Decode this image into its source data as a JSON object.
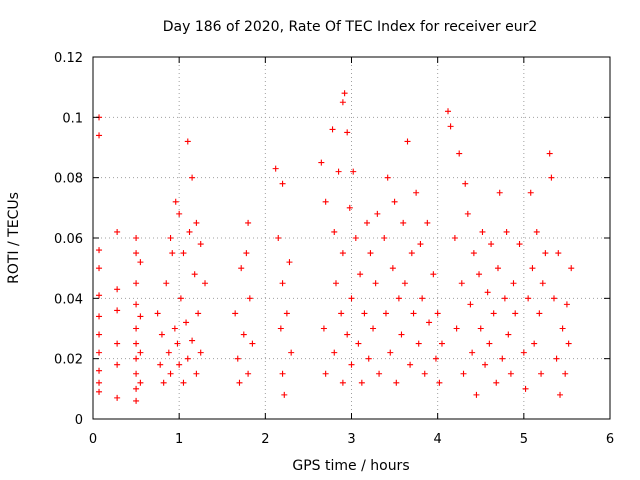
{
  "chart_data": {
    "type": "scatter",
    "title": "Day 186 of 2020, Rate Of TEC Index for receiver eur2",
    "xlabel": "GPS time / hours",
    "ylabel": "ROTI / TECUs",
    "xlim": [
      0,
      6
    ],
    "ylim": [
      0,
      0.12
    ],
    "xticks": [
      0,
      1,
      2,
      3,
      4,
      5,
      6
    ],
    "xtick_labels": [
      "0",
      "1",
      "2",
      "3",
      "4",
      "5",
      "6"
    ],
    "yticks": [
      0,
      0.02,
      0.04,
      0.06,
      0.08,
      0.1,
      0.12
    ],
    "ytick_labels": [
      "0",
      "0.02",
      "0.04",
      "0.06",
      "0.08",
      "0.1",
      "0.12"
    ],
    "grid": true,
    "marker": "+",
    "color": "#ff0000",
    "series": [
      {
        "name": "eur2",
        "points": [
          [
            0.07,
            0.1
          ],
          [
            0.07,
            0.094
          ],
          [
            0.07,
            0.056
          ],
          [
            0.07,
            0.05
          ],
          [
            0.07,
            0.041
          ],
          [
            0.07,
            0.034
          ],
          [
            0.07,
            0.028
          ],
          [
            0.07,
            0.022
          ],
          [
            0.07,
            0.016
          ],
          [
            0.07,
            0.012
          ],
          [
            0.07,
            0.009
          ],
          [
            0.28,
            0.062
          ],
          [
            0.28,
            0.043
          ],
          [
            0.28,
            0.036
          ],
          [
            0.28,
            0.025
          ],
          [
            0.28,
            0.018
          ],
          [
            0.28,
            0.007
          ],
          [
            0.5,
            0.06
          ],
          [
            0.5,
            0.055
          ],
          [
            0.5,
            0.045
          ],
          [
            0.5,
            0.038
          ],
          [
            0.5,
            0.03
          ],
          [
            0.5,
            0.025
          ],
          [
            0.5,
            0.02
          ],
          [
            0.5,
            0.015
          ],
          [
            0.5,
            0.01
          ],
          [
            0.5,
            0.006
          ],
          [
            0.55,
            0.052
          ],
          [
            0.55,
            0.034
          ],
          [
            0.55,
            0.022
          ],
          [
            0.55,
            0.012
          ],
          [
            0.75,
            0.035
          ],
          [
            0.78,
            0.018
          ],
          [
            0.8,
            0.028
          ],
          [
            0.82,
            0.012
          ],
          [
            0.85,
            0.045
          ],
          [
            0.88,
            0.022
          ],
          [
            0.9,
            0.015
          ],
          [
            0.9,
            0.06
          ],
          [
            0.92,
            0.055
          ],
          [
            0.95,
            0.03
          ],
          [
            0.96,
            0.072
          ],
          [
            0.98,
            0.025
          ],
          [
            1.0,
            0.068
          ],
          [
            1.0,
            0.018
          ],
          [
            1.02,
            0.04
          ],
          [
            1.05,
            0.012
          ],
          [
            1.05,
            0.055
          ],
          [
            1.08,
            0.032
          ],
          [
            1.1,
            0.092
          ],
          [
            1.1,
            0.02
          ],
          [
            1.12,
            0.062
          ],
          [
            1.15,
            0.08
          ],
          [
            1.15,
            0.026
          ],
          [
            1.18,
            0.048
          ],
          [
            1.2,
            0.065
          ],
          [
            1.2,
            0.015
          ],
          [
            1.22,
            0.035
          ],
          [
            1.25,
            0.058
          ],
          [
            1.25,
            0.022
          ],
          [
            1.3,
            0.045
          ],
          [
            1.65,
            0.035
          ],
          [
            1.68,
            0.02
          ],
          [
            1.7,
            0.012
          ],
          [
            1.72,
            0.05
          ],
          [
            1.75,
            0.028
          ],
          [
            1.78,
            0.055
          ],
          [
            1.8,
            0.065
          ],
          [
            1.8,
            0.015
          ],
          [
            1.82,
            0.04
          ],
          [
            1.85,
            0.025
          ],
          [
            2.12,
            0.083
          ],
          [
            2.15,
            0.06
          ],
          [
            2.18,
            0.03
          ],
          [
            2.2,
            0.078
          ],
          [
            2.2,
            0.045
          ],
          [
            2.2,
            0.015
          ],
          [
            2.22,
            0.008
          ],
          [
            2.25,
            0.035
          ],
          [
            2.28,
            0.052
          ],
          [
            2.3,
            0.022
          ],
          [
            2.65,
            0.085
          ],
          [
            2.68,
            0.03
          ],
          [
            2.7,
            0.072
          ],
          [
            2.7,
            0.015
          ],
          [
            2.78,
            0.096
          ],
          [
            2.8,
            0.062
          ],
          [
            2.8,
            0.022
          ],
          [
            2.82,
            0.045
          ],
          [
            2.85,
            0.082
          ],
          [
            2.88,
            0.035
          ],
          [
            2.9,
            0.105
          ],
          [
            2.9,
            0.055
          ],
          [
            2.9,
            0.012
          ],
          [
            2.92,
            0.108
          ],
          [
            2.95,
            0.095
          ],
          [
            2.95,
            0.028
          ],
          [
            2.98,
            0.07
          ],
          [
            3.0,
            0.04
          ],
          [
            3.0,
            0.018
          ],
          [
            3.02,
            0.082
          ],
          [
            3.05,
            0.06
          ],
          [
            3.08,
            0.025
          ],
          [
            3.1,
            0.048
          ],
          [
            3.12,
            0.012
          ],
          [
            3.15,
            0.035
          ],
          [
            3.18,
            0.065
          ],
          [
            3.2,
            0.02
          ],
          [
            3.22,
            0.055
          ],
          [
            3.25,
            0.03
          ],
          [
            3.28,
            0.045
          ],
          [
            3.3,
            0.068
          ],
          [
            3.32,
            0.015
          ],
          [
            3.38,
            0.06
          ],
          [
            3.4,
            0.035
          ],
          [
            3.42,
            0.08
          ],
          [
            3.45,
            0.022
          ],
          [
            3.48,
            0.05
          ],
          [
            3.5,
            0.072
          ],
          [
            3.52,
            0.012
          ],
          [
            3.55,
            0.04
          ],
          [
            3.58,
            0.028
          ],
          [
            3.6,
            0.065
          ],
          [
            3.62,
            0.045
          ],
          [
            3.65,
            0.092
          ],
          [
            3.68,
            0.018
          ],
          [
            3.7,
            0.055
          ],
          [
            3.72,
            0.035
          ],
          [
            3.75,
            0.075
          ],
          [
            3.78,
            0.025
          ],
          [
            3.8,
            0.058
          ],
          [
            3.82,
            0.04
          ],
          [
            3.85,
            0.015
          ],
          [
            3.88,
            0.065
          ],
          [
            3.9,
            0.032
          ],
          [
            3.95,
            0.048
          ],
          [
            3.98,
            0.02
          ],
          [
            4.0,
            0.035
          ],
          [
            4.02,
            0.012
          ],
          [
            4.05,
            0.025
          ],
          [
            4.12,
            0.102
          ],
          [
            4.15,
            0.097
          ],
          [
            4.2,
            0.06
          ],
          [
            4.22,
            0.03
          ],
          [
            4.25,
            0.088
          ],
          [
            4.28,
            0.045
          ],
          [
            4.3,
            0.015
          ],
          [
            4.32,
            0.078
          ],
          [
            4.35,
            0.068
          ],
          [
            4.38,
            0.038
          ],
          [
            4.4,
            0.022
          ],
          [
            4.42,
            0.055
          ],
          [
            4.45,
            0.008
          ],
          [
            4.48,
            0.048
          ],
          [
            4.5,
            0.03
          ],
          [
            4.52,
            0.062
          ],
          [
            4.55,
            0.018
          ],
          [
            4.58,
            0.042
          ],
          [
            4.6,
            0.025
          ],
          [
            4.62,
            0.058
          ],
          [
            4.65,
            0.035
          ],
          [
            4.68,
            0.012
          ],
          [
            4.7,
            0.05
          ],
          [
            4.72,
            0.075
          ],
          [
            4.75,
            0.02
          ],
          [
            4.78,
            0.04
          ],
          [
            4.8,
            0.062
          ],
          [
            4.82,
            0.028
          ],
          [
            4.85,
            0.015
          ],
          [
            4.88,
            0.045
          ],
          [
            4.9,
            0.035
          ],
          [
            4.95,
            0.058
          ],
          [
            5.0,
            0.022
          ],
          [
            5.02,
            0.01
          ],
          [
            5.05,
            0.04
          ],
          [
            5.08,
            0.075
          ],
          [
            5.1,
            0.05
          ],
          [
            5.12,
            0.025
          ],
          [
            5.15,
            0.062
          ],
          [
            5.18,
            0.035
          ],
          [
            5.2,
            0.015
          ],
          [
            5.22,
            0.045
          ],
          [
            5.25,
            0.055
          ],
          [
            5.3,
            0.088
          ],
          [
            5.32,
            0.08
          ],
          [
            5.35,
            0.04
          ],
          [
            5.38,
            0.02
          ],
          [
            5.4,
            0.055
          ],
          [
            5.42,
            0.008
          ],
          [
            5.45,
            0.03
          ],
          [
            5.48,
            0.015
          ],
          [
            5.5,
            0.038
          ],
          [
            5.52,
            0.025
          ],
          [
            5.55,
            0.05
          ]
        ]
      }
    ]
  }
}
